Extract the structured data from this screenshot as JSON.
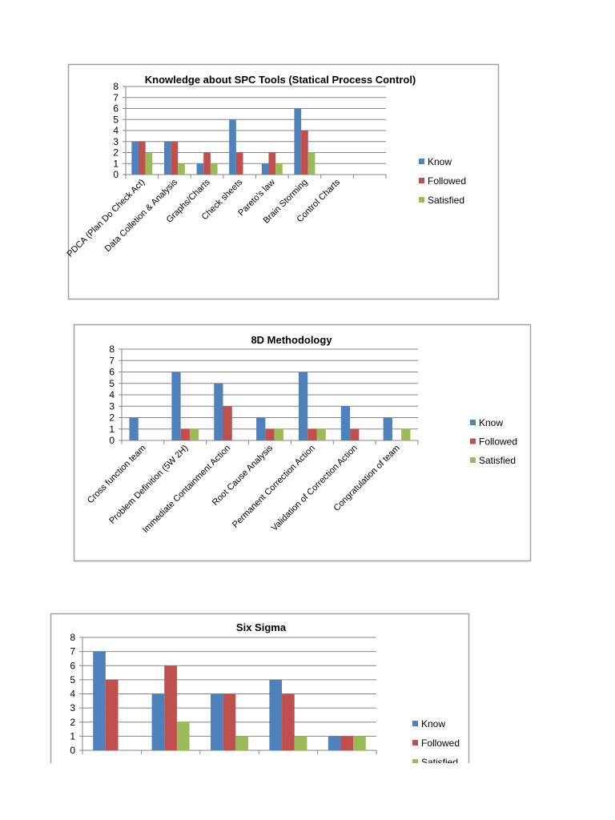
{
  "colors": {
    "Know": "#4F81BD",
    "Followed": "#C0504D",
    "Satisfied": "#9BBB59",
    "grid": "#868686",
    "border": "#A0A0A0"
  },
  "chart_data": [
    {
      "type": "bar",
      "title": "Knowledge about SPC Tools (Statical Process Control)",
      "categories": [
        "PDCA (Plan Do Check Act)",
        "Data Colletion & Analysis",
        "Graphs/Charts",
        "Check sheets",
        "Pareto's law",
        "Brain Storming",
        "Control Charts",
        ""
      ],
      "series": [
        {
          "name": "Know",
          "values": [
            3,
            3,
            1,
            5,
            1,
            6,
            0,
            0
          ]
        },
        {
          "name": "Followed",
          "values": [
            3,
            3,
            2,
            2,
            2,
            4,
            0,
            0
          ]
        },
        {
          "name": "Satisfied",
          "values": [
            2,
            1,
            1,
            0,
            1,
            2,
            0,
            0
          ]
        }
      ],
      "ylim": [
        0,
        8
      ],
      "yticks": [
        "0",
        "1",
        "2",
        "3",
        "4",
        "5",
        "6",
        "7",
        "8"
      ],
      "grid": true,
      "legend": "right"
    },
    {
      "type": "bar",
      "title": "8D Methodology",
      "categories": [
        "Cross function team",
        "Problem Definition (5W 2H)",
        "Immediate Containment Action",
        "Root Cause Analysis",
        "Permanent Correction Action",
        "Validation of Correction Action",
        "Congratulation of team"
      ],
      "series": [
        {
          "name": "Know",
          "values": [
            2,
            6,
            5,
            2,
            6,
            3,
            2
          ]
        },
        {
          "name": "Followed",
          "values": [
            0,
            1,
            3,
            1,
            1,
            1,
            0
          ]
        },
        {
          "name": "Satisfied",
          "values": [
            0,
            1,
            0,
            1,
            1,
            0,
            1
          ]
        }
      ],
      "ylim": [
        0,
        8
      ],
      "yticks": [
        "0",
        "1",
        "2",
        "3",
        "4",
        "5",
        "6",
        "7",
        "8"
      ],
      "grid": true,
      "legend": "right"
    },
    {
      "type": "bar",
      "title": "Six Sigma",
      "categories": [
        "",
        "",
        "",
        "",
        ""
      ],
      "series": [
        {
          "name": "Know",
          "values": [
            7,
            4,
            4,
            5,
            1
          ]
        },
        {
          "name": "Followed",
          "values": [
            5,
            6,
            4,
            4,
            1
          ]
        },
        {
          "name": "Satisfied",
          "values": [
            0,
            2,
            1,
            1,
            1
          ]
        }
      ],
      "ylim": [
        0,
        8
      ],
      "yticks": [
        "0",
        "1",
        "2",
        "3",
        "4",
        "5",
        "6",
        "7",
        "8"
      ],
      "grid": true,
      "legend": "right"
    }
  ]
}
